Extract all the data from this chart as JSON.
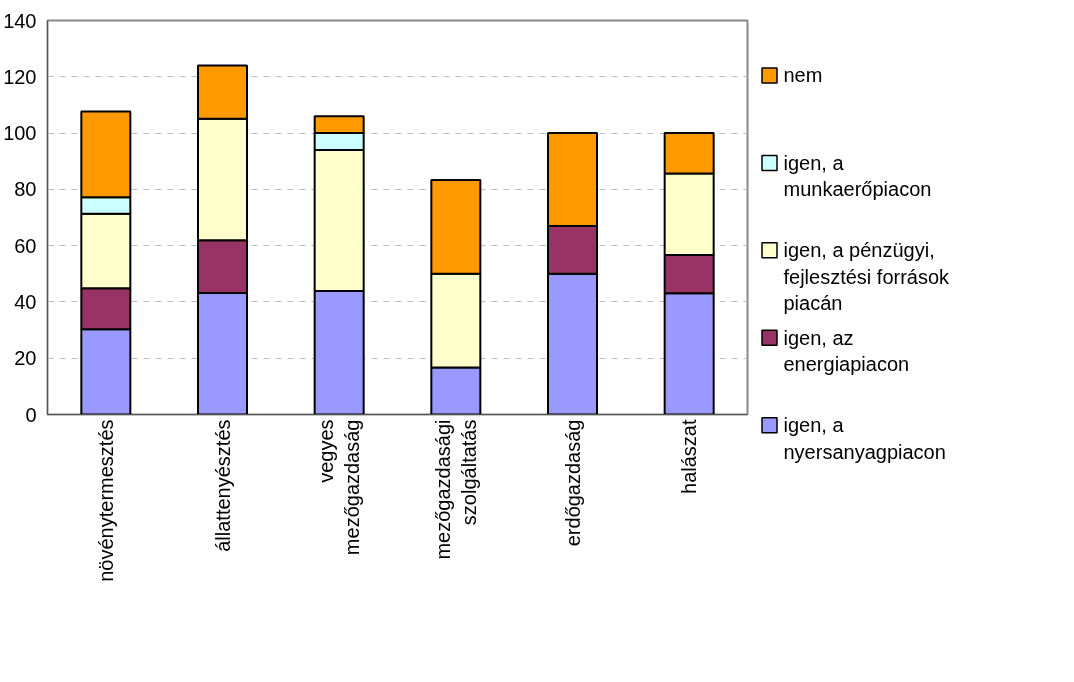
{
  "chart_data": {
    "type": "bar",
    "stacked": true,
    "categories": [
      "növénytermesztés",
      "állattenyésztés",
      "vegyes mezőgazdaság",
      "mezőgazdasági szolgáltatás",
      "erdőgazdaság",
      "halászat"
    ],
    "series": [
      {
        "name": "igen, a nyersanyagpiacon",
        "color": "#9999ff",
        "values": [
          30.3,
          43.2,
          43.9,
          16.7,
          50,
          43.1
        ]
      },
      {
        "name": "igen, az energiapiacon",
        "color": "#993366",
        "values": [
          14.6,
          18.7,
          0,
          0,
          17,
          13.6
        ]
      },
      {
        "name": "igen, a pénzügyi, fejlesztési források piacán",
        "color": "#ffffcc",
        "values": [
          26.4,
          43.2,
          50.1,
          33.3,
          0,
          28.9
        ]
      },
      {
        "name": "igen, a munkaerőpiacon",
        "color": "#ccffff",
        "values": [
          5.9,
          0,
          6,
          0,
          0,
          0
        ]
      },
      {
        "name": "nem",
        "color": "#ff9900",
        "values": [
          30.5,
          18.9,
          6,
          33.3,
          33,
          14.4
        ]
      }
    ],
    "ylim": [
      0,
      140
    ],
    "yticks": [
      0,
      20,
      40,
      60,
      80,
      100,
      120,
      140
    ],
    "grid": "y",
    "legend": "right"
  }
}
